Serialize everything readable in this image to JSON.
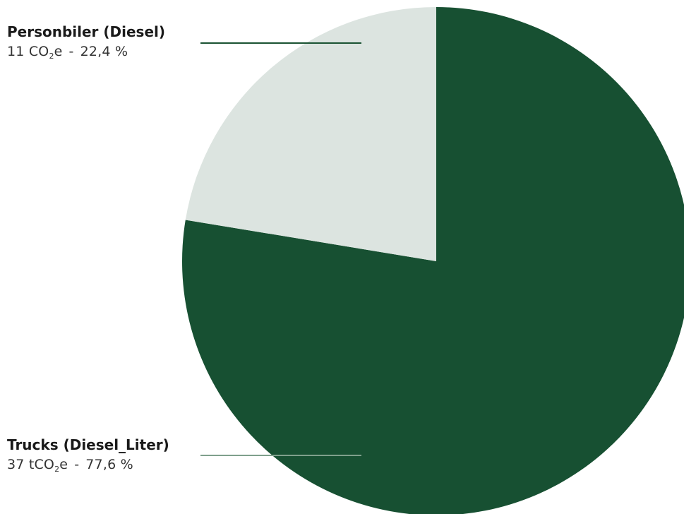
{
  "chart_data": {
    "type": "pie",
    "slices": [
      {
        "name": "Personbiler (Diesel)",
        "value": 11,
        "value_prefix": "11 CO",
        "sub": "2",
        "value_suffix": "e",
        "percent": 22.4,
        "percent_label": "22,4 %",
        "color": "#dce4e0",
        "leader_color": "#1a5232"
      },
      {
        "name": "Trucks (Diesel_Liter)",
        "value": 37,
        "value_prefix": "37 tCO",
        "sub": "2",
        "value_suffix": "e",
        "percent": 77.6,
        "percent_label": "77,6 %",
        "color": "#175032",
        "leader_color": "#7fa08c"
      }
    ],
    "separator": "-"
  }
}
